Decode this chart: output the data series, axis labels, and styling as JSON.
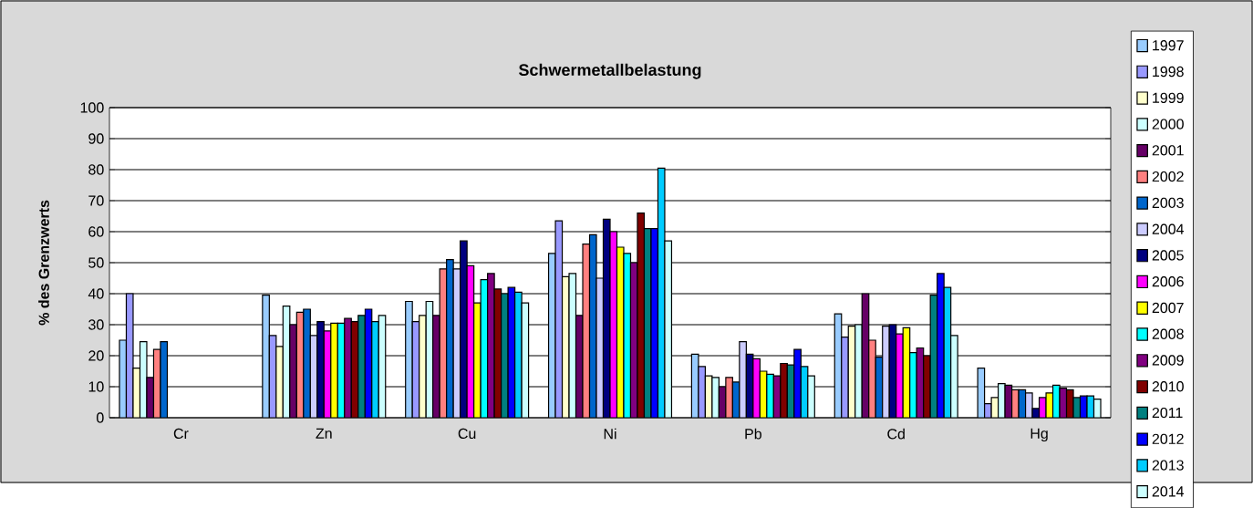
{
  "chart_data": {
    "type": "bar",
    "title": "Schwermetallbelastung",
    "ylabel": "% des Grenzwerts",
    "categories": [
      "Cr",
      "Zn",
      "Cu",
      "Ni",
      "Pb",
      "Cd",
      "Hg"
    ],
    "ylim": [
      0,
      100
    ],
    "yticks": [
      0,
      10,
      20,
      30,
      40,
      50,
      60,
      70,
      80,
      90,
      100
    ],
    "grid": "y",
    "legend": "right",
    "series": [
      {
        "name": "1997",
        "color": "#99ccff",
        "values": [
          25,
          39.5,
          37.5,
          53,
          20.5,
          33.5,
          16
        ]
      },
      {
        "name": "1998",
        "color": "#9999ff",
        "values": [
          40,
          26.5,
          31,
          63.5,
          16.5,
          26,
          4.5
        ]
      },
      {
        "name": "1999",
        "color": "#ffffcc",
        "values": [
          16,
          23,
          33,
          45.5,
          13.5,
          29.5,
          6.5
        ]
      },
      {
        "name": "2000",
        "color": "#ccffff",
        "values": [
          24.5,
          36,
          37.5,
          46.5,
          13,
          30,
          11
        ]
      },
      {
        "name": "2001",
        "color": "#660066",
        "values": [
          13,
          30,
          33,
          33,
          10,
          40,
          10.5
        ]
      },
      {
        "name": "2002",
        "color": "#ff8080",
        "values": [
          22,
          34,
          48,
          56,
          13,
          25,
          9
        ]
      },
      {
        "name": "2003",
        "color": "#0066cc",
        "values": [
          24.5,
          35,
          51,
          59,
          11.5,
          19.5,
          9
        ]
      },
      {
        "name": "2004",
        "color": "#ccccff",
        "values": [
          null,
          26.5,
          48,
          45,
          24.5,
          29.5,
          8
        ]
      },
      {
        "name": "2005",
        "color": "#000080",
        "values": [
          null,
          31,
          57,
          64,
          20.5,
          30,
          3
        ]
      },
      {
        "name": "2006",
        "color": "#ff00ff",
        "values": [
          null,
          28,
          49,
          60,
          19,
          27,
          6.5
        ]
      },
      {
        "name": "2007",
        "color": "#ffff00",
        "values": [
          null,
          30.5,
          37,
          55,
          15,
          29,
          8
        ]
      },
      {
        "name": "2008",
        "color": "#00ffff",
        "values": [
          null,
          30.5,
          44.5,
          53,
          14,
          21,
          10.5
        ]
      },
      {
        "name": "2009",
        "color": "#800080",
        "values": [
          null,
          32,
          46.5,
          50,
          13.5,
          22.5,
          9.5
        ]
      },
      {
        "name": "2010",
        "color": "#800000",
        "values": [
          null,
          31,
          41.5,
          66,
          17.5,
          20,
          9
        ]
      },
      {
        "name": "2011",
        "color": "#008080",
        "values": [
          null,
          33,
          40,
          61,
          17,
          39.5,
          6.5
        ]
      },
      {
        "name": "2012",
        "color": "#0000ff",
        "values": [
          null,
          35,
          42,
          61,
          22,
          46.5,
          7
        ]
      },
      {
        "name": "2013",
        "color": "#00ccff",
        "values": [
          null,
          31,
          40.5,
          80.5,
          16.5,
          42,
          7
        ]
      },
      {
        "name": "2014",
        "color": "#ccffff",
        "values": [
          null,
          33,
          37,
          57,
          13.5,
          26.5,
          6
        ]
      }
    ]
  }
}
